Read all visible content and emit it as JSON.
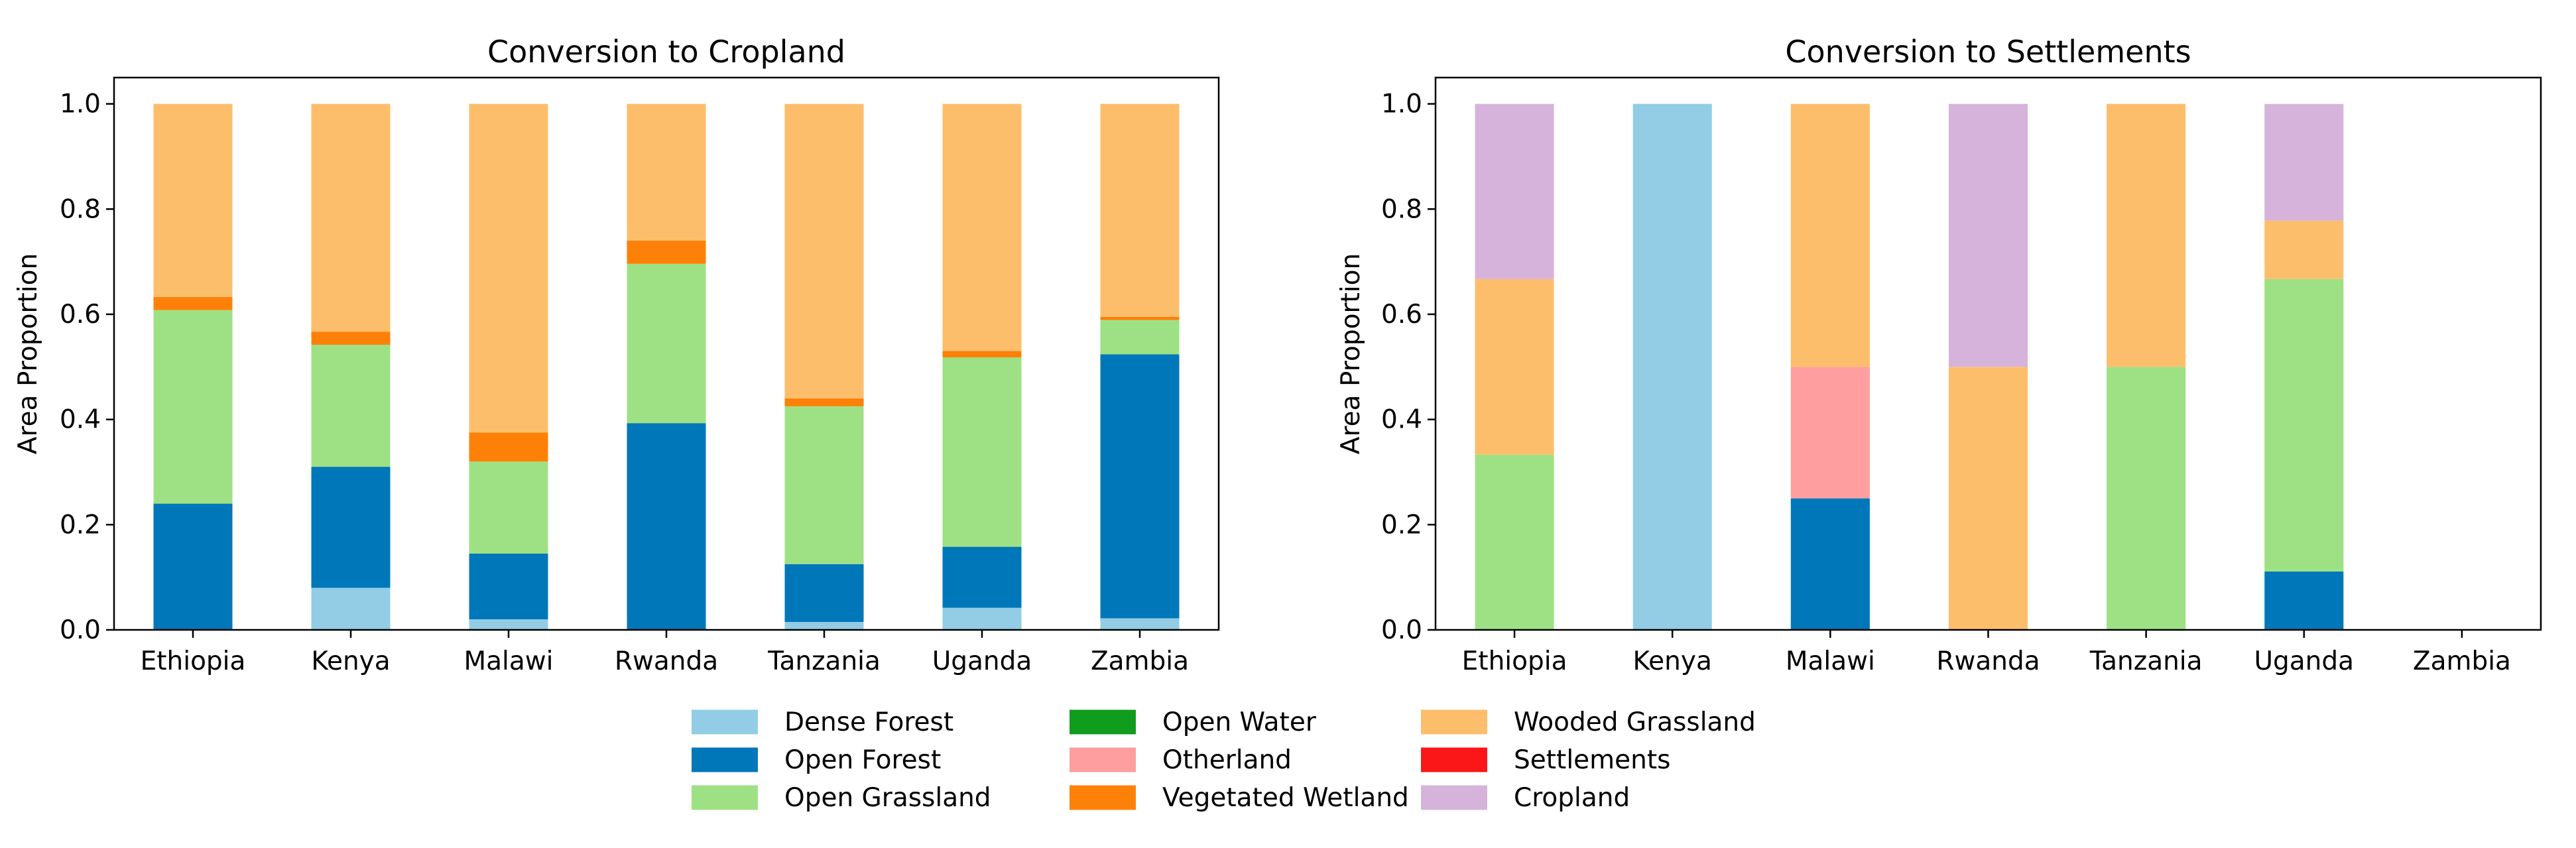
{
  "colors": {
    "Dense Forest": "#92cde5",
    "Open Forest": "#0077b8",
    "Open Grassland": "#9ee184",
    "Open Water": "#109c1c",
    "Otherland": "#fe9e9e",
    "Vegetated Wetland": "#fd8108",
    "Wooded Grassland": "#fdbe6c",
    "Settlements": "#fb1717",
    "Cropland": "#d6b3db"
  },
  "legend": {
    "columns": [
      [
        "Dense Forest",
        "Open Forest",
        "Open Grassland"
      ],
      [
        "Open Water",
        "Otherland",
        "Vegetated Wetland"
      ],
      [
        "Wooded Grassland",
        "Settlements",
        "Cropland"
      ]
    ]
  },
  "chart_data": [
    {
      "type": "bar",
      "stacked": true,
      "title": "Conversion to Cropland",
      "ylabel": "Area Proportion",
      "ylim": [
        0,
        1.05
      ],
      "yticks": [
        "0.0",
        "0.2",
        "0.4",
        "0.6",
        "0.8",
        "1.0"
      ],
      "categories": [
        "Ethiopia",
        "Kenya",
        "Malawi",
        "Rwanda",
        "Tanzania",
        "Uganda",
        "Zambia"
      ],
      "series": [
        {
          "name": "Dense Forest",
          "values": [
            0.0,
            0.08,
            0.02,
            0.0,
            0.015,
            0.042,
            0.022
          ]
        },
        {
          "name": "Open Forest",
          "values": [
            0.24,
            0.23,
            0.125,
            0.393,
            0.11,
            0.116,
            0.502
          ]
        },
        {
          "name": "Open Grassland",
          "values": [
            0.368,
            0.232,
            0.175,
            0.303,
            0.3,
            0.36,
            0.065
          ]
        },
        {
          "name": "Open Water",
          "values": [
            0.0,
            0.0,
            0.0,
            0.0,
            0.0,
            0.0,
            0.0
          ]
        },
        {
          "name": "Otherland",
          "values": [
            0.0,
            0.0,
            0.0,
            0.0,
            0.0,
            0.0,
            0.0
          ]
        },
        {
          "name": "Vegetated Wetland",
          "values": [
            0.025,
            0.025,
            0.055,
            0.044,
            0.015,
            0.012,
            0.006
          ]
        },
        {
          "name": "Wooded Grassland",
          "values": [
            0.367,
            0.433,
            0.625,
            0.26,
            0.56,
            0.47,
            0.405
          ]
        },
        {
          "name": "Settlements",
          "values": [
            0.0,
            0.0,
            0.0,
            0.0,
            0.0,
            0.0,
            0.0
          ]
        },
        {
          "name": "Cropland",
          "values": [
            0.0,
            0.0,
            0.0,
            0.0,
            0.0,
            0.0,
            0.0
          ]
        }
      ]
    },
    {
      "type": "bar",
      "stacked": true,
      "title": "Conversion to Settlements",
      "ylabel": "Area Proportion",
      "ylim": [
        0,
        1.05
      ],
      "yticks": [
        "0.0",
        "0.2",
        "0.4",
        "0.6",
        "0.8",
        "1.0"
      ],
      "categories": [
        "Ethiopia",
        "Kenya",
        "Malawi",
        "Rwanda",
        "Tanzania",
        "Uganda",
        "Zambia"
      ],
      "series": [
        {
          "name": "Dense Forest",
          "values": [
            0.0,
            1.0,
            0.0,
            0.0,
            0.0,
            0.0,
            0.0
          ]
        },
        {
          "name": "Open Forest",
          "values": [
            0.0,
            0.0,
            0.25,
            0.0,
            0.0,
            0.111,
            0.0
          ]
        },
        {
          "name": "Open Grassland",
          "values": [
            0.333,
            0.0,
            0.0,
            0.0,
            0.5,
            0.556,
            0.0
          ]
        },
        {
          "name": "Open Water",
          "values": [
            0.0,
            0.0,
            0.0,
            0.0,
            0.0,
            0.0,
            0.0
          ]
        },
        {
          "name": "Otherland",
          "values": [
            0.0,
            0.0,
            0.25,
            0.0,
            0.0,
            0.0,
            0.0
          ]
        },
        {
          "name": "Vegetated Wetland",
          "values": [
            0.0,
            0.0,
            0.0,
            0.0,
            0.0,
            0.0,
            0.0
          ]
        },
        {
          "name": "Wooded Grassland",
          "values": [
            0.334,
            0.0,
            0.5,
            0.5,
            0.5,
            0.111,
            0.0
          ]
        },
        {
          "name": "Settlements",
          "values": [
            0.0,
            0.0,
            0.0,
            0.0,
            0.0,
            0.0,
            0.0
          ]
        },
        {
          "name": "Cropland",
          "values": [
            0.333,
            0.0,
            0.0,
            0.5,
            0.0,
            0.222,
            0.0
          ]
        }
      ]
    }
  ]
}
